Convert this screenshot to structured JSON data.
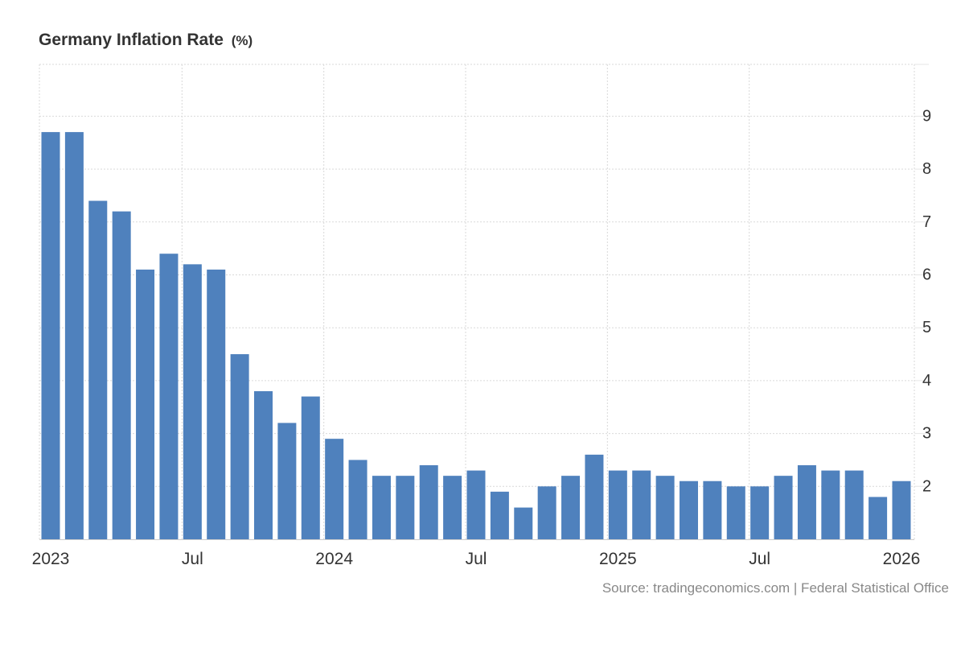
{
  "header": {
    "title": "Germany Inflation Rate",
    "unit": "(%)"
  },
  "source": "Source: tradingeconomics.com | Federal Statistical Office",
  "colors": {
    "bar": "#4f81bd",
    "grid": "#d9d9d9",
    "axis_text": "#333333"
  },
  "chart_data": {
    "type": "bar",
    "title": "Germany Inflation Rate (%)",
    "xlabel": "",
    "ylabel": "%",
    "ylim": [
      1,
      9.98
    ],
    "yticks": [
      2,
      3,
      4,
      5,
      6,
      7,
      8,
      9
    ],
    "y_axis_position": "right",
    "grid": true,
    "categories": [
      "2023-01",
      "2023-02",
      "2023-03",
      "2023-04",
      "2023-05",
      "2023-06",
      "2023-07",
      "2023-08",
      "2023-09",
      "2023-10",
      "2023-11",
      "2023-12",
      "2024-01",
      "2024-02",
      "2024-03",
      "2024-04",
      "2024-05",
      "2024-06",
      "2024-07",
      "2024-08",
      "2024-09",
      "2024-10",
      "2024-11",
      "2024-12",
      "2025-01",
      "2025-02",
      "2025-03",
      "2025-04",
      "2025-05",
      "2025-06",
      "2025-07",
      "2025-08",
      "2025-09",
      "2025-10",
      "2025-11",
      "2025-12",
      "2026-01"
    ],
    "values": [
      8.7,
      8.7,
      7.4,
      7.2,
      6.1,
      6.4,
      6.2,
      6.1,
      4.5,
      3.8,
      3.2,
      3.7,
      2.9,
      2.5,
      2.2,
      2.2,
      2.4,
      2.2,
      2.3,
      1.9,
      1.6,
      2.0,
      2.2,
      2.6,
      2.3,
      2.3,
      2.2,
      2.1,
      2.1,
      2.0,
      2.0,
      2.2,
      2.4,
      2.3,
      2.3,
      1.8,
      2.1
    ],
    "x_tick_labels": [
      {
        "index": 0,
        "label": "2023"
      },
      {
        "index": 6,
        "label": "Jul"
      },
      {
        "index": 12,
        "label": "2024"
      },
      {
        "index": 18,
        "label": "Jul"
      },
      {
        "index": 24,
        "label": "2025"
      },
      {
        "index": 30,
        "label": "Jul"
      },
      {
        "index": 36,
        "label": "2026"
      }
    ]
  }
}
